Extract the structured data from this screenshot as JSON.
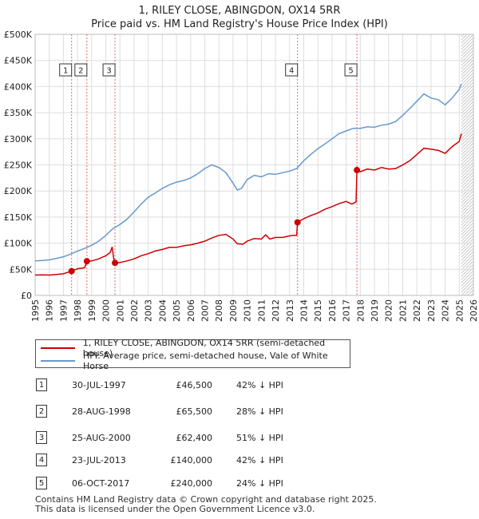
{
  "chart_data": {
    "type": "line",
    "title": "1, RILEY CLOSE, ABINGDON, OX14 5RR",
    "subtitle": "Price paid vs. HM Land Registry's House Price Index (HPI)",
    "xlim": [
      1995,
      2026
    ],
    "ylim": [
      0,
      500000
    ],
    "x_ticks": [
      1995,
      1996,
      1997,
      1998,
      1999,
      2000,
      2001,
      2002,
      2003,
      2004,
      2005,
      2006,
      2007,
      2008,
      2009,
      2010,
      2011,
      2012,
      2013,
      2014,
      2015,
      2016,
      2017,
      2018,
      2019,
      2020,
      2021,
      2022,
      2023,
      2024,
      2025,
      2026
    ],
    "y_ticks": [
      {
        "value": 0,
        "label": "£0"
      },
      {
        "value": 50000,
        "label": "£50K"
      },
      {
        "value": 100000,
        "label": "£100K"
      },
      {
        "value": 150000,
        "label": "£150K"
      },
      {
        "value": 200000,
        "label": "£200K"
      },
      {
        "value": 250000,
        "label": "£250K"
      },
      {
        "value": 300000,
        "label": "£300K"
      },
      {
        "value": 350000,
        "label": "£350K"
      },
      {
        "value": 400000,
        "label": "£400K"
      },
      {
        "value": 450000,
        "label": "£450K"
      },
      {
        "value": 500000,
        "label": "£500K"
      }
    ],
    "forecast_start": 2025.15,
    "series": [
      {
        "name": "1, RILEY CLOSE, ABINGDON, OX14 5RR (semi-detached house)",
        "color": "#cc0000",
        "points": [
          [
            1995.0,
            39000
          ],
          [
            1995.5,
            39500
          ],
          [
            1996.0,
            39000
          ],
          [
            1996.5,
            40000
          ],
          [
            1997.0,
            41500
          ],
          [
            1997.58,
            46500
          ],
          [
            1998.0,
            51000
          ],
          [
            1998.5,
            53000
          ],
          [
            1998.66,
            65500
          ],
          [
            1999.0,
            66000
          ],
          [
            1999.5,
            70000
          ],
          [
            2000.0,
            76000
          ],
          [
            2000.3,
            82000
          ],
          [
            2000.45,
            93000
          ],
          [
            2000.55,
            72000
          ],
          [
            2000.65,
            62400
          ],
          [
            2001.0,
            63000
          ],
          [
            2001.5,
            66000
          ],
          [
            2002.0,
            70000
          ],
          [
            2002.5,
            76000
          ],
          [
            2003.0,
            80000
          ],
          [
            2003.5,
            85000
          ],
          [
            2004.0,
            88000
          ],
          [
            2004.5,
            92000
          ],
          [
            2005.0,
            92000
          ],
          [
            2005.5,
            95000
          ],
          [
            2006.0,
            97000
          ],
          [
            2006.5,
            100000
          ],
          [
            2007.0,
            104000
          ],
          [
            2007.5,
            110000
          ],
          [
            2008.0,
            115000
          ],
          [
            2008.5,
            117000
          ],
          [
            2009.0,
            108000
          ],
          [
            2009.3,
            99000
          ],
          [
            2009.7,
            98000
          ],
          [
            2010.0,
            104000
          ],
          [
            2010.5,
            109000
          ],
          [
            2011.0,
            108000
          ],
          [
            2011.3,
            116000
          ],
          [
            2011.6,
            108000
          ],
          [
            2012.0,
            111000
          ],
          [
            2012.5,
            111000
          ],
          [
            2013.0,
            114000
          ],
          [
            2013.3,
            115000
          ],
          [
            2013.5,
            115000
          ],
          [
            2013.56,
            140000
          ],
          [
            2014.0,
            147000
          ],
          [
            2014.5,
            153000
          ],
          [
            2015.0,
            158000
          ],
          [
            2015.5,
            165000
          ],
          [
            2016.0,
            170000
          ],
          [
            2016.5,
            176000
          ],
          [
            2017.0,
            180000
          ],
          [
            2017.4,
            175000
          ],
          [
            2017.7,
            179000
          ],
          [
            2017.76,
            240000
          ],
          [
            2018.0,
            237000
          ],
          [
            2018.5,
            242000
          ],
          [
            2019.0,
            240000
          ],
          [
            2019.5,
            245000
          ],
          [
            2020.0,
            242000
          ],
          [
            2020.5,
            243000
          ],
          [
            2021.0,
            250000
          ],
          [
            2021.5,
            258000
          ],
          [
            2022.0,
            270000
          ],
          [
            2022.5,
            282000
          ],
          [
            2023.0,
            280000
          ],
          [
            2023.5,
            278000
          ],
          [
            2024.0,
            272000
          ],
          [
            2024.5,
            285000
          ],
          [
            2025.0,
            295000
          ],
          [
            2025.15,
            310000
          ]
        ]
      },
      {
        "name": "HPI: Average price, semi-detached house, Vale of White Horse",
        "color": "#6699cc",
        "points": [
          [
            1995.0,
            66000
          ],
          [
            1995.5,
            67000
          ],
          [
            1996.0,
            68000
          ],
          [
            1996.5,
            71000
          ],
          [
            1997.0,
            74000
          ],
          [
            1997.5,
            79000
          ],
          [
            1998.0,
            85000
          ],
          [
            1998.5,
            90000
          ],
          [
            1999.0,
            96000
          ],
          [
            1999.5,
            104000
          ],
          [
            2000.0,
            115000
          ],
          [
            2000.5,
            128000
          ],
          [
            2001.0,
            136000
          ],
          [
            2001.5,
            146000
          ],
          [
            2002.0,
            160000
          ],
          [
            2002.5,
            175000
          ],
          [
            2003.0,
            188000
          ],
          [
            2003.5,
            196000
          ],
          [
            2004.0,
            205000
          ],
          [
            2004.5,
            212000
          ],
          [
            2005.0,
            217000
          ],
          [
            2005.5,
            220000
          ],
          [
            2006.0,
            225000
          ],
          [
            2006.5,
            233000
          ],
          [
            2007.0,
            243000
          ],
          [
            2007.5,
            250000
          ],
          [
            2008.0,
            245000
          ],
          [
            2008.5,
            235000
          ],
          [
            2009.0,
            215000
          ],
          [
            2009.3,
            202000
          ],
          [
            2009.6,
            205000
          ],
          [
            2010.0,
            222000
          ],
          [
            2010.5,
            230000
          ],
          [
            2011.0,
            227000
          ],
          [
            2011.5,
            233000
          ],
          [
            2012.0,
            232000
          ],
          [
            2012.5,
            235000
          ],
          [
            2013.0,
            238000
          ],
          [
            2013.5,
            243000
          ],
          [
            2014.0,
            258000
          ],
          [
            2014.5,
            270000
          ],
          [
            2015.0,
            281000
          ],
          [
            2015.5,
            290000
          ],
          [
            2016.0,
            300000
          ],
          [
            2016.5,
            310000
          ],
          [
            2017.0,
            315000
          ],
          [
            2017.5,
            320000
          ],
          [
            2018.0,
            320000
          ],
          [
            2018.5,
            323000
          ],
          [
            2019.0,
            322000
          ],
          [
            2019.5,
            326000
          ],
          [
            2020.0,
            328000
          ],
          [
            2020.5,
            333000
          ],
          [
            2021.0,
            345000
          ],
          [
            2021.5,
            358000
          ],
          [
            2022.0,
            372000
          ],
          [
            2022.5,
            386000
          ],
          [
            2023.0,
            378000
          ],
          [
            2023.5,
            375000
          ],
          [
            2024.0,
            365000
          ],
          [
            2024.5,
            378000
          ],
          [
            2025.0,
            395000
          ],
          [
            2025.15,
            405000
          ]
        ]
      }
    ],
    "sales": [
      {
        "num": "1",
        "date": "30-JUL-1997",
        "price": "£46,500",
        "hpi": "42% ↓ HPI",
        "x": 1997.58,
        "y": 46500
      },
      {
        "num": "2",
        "date": "28-AUG-1998",
        "price": "£65,500",
        "hpi": "28% ↓ HPI",
        "x": 1998.66,
        "y": 65500
      },
      {
        "num": "3",
        "date": "25-AUG-2000",
        "price": "£62,400",
        "hpi": "51% ↓ HPI",
        "x": 2000.65,
        "y": 62400
      },
      {
        "num": "4",
        "date": "23-JUL-2013",
        "price": "£140,000",
        "hpi": "42% ↓ HPI",
        "x": 2013.56,
        "y": 140000
      },
      {
        "num": "5",
        "date": "06-OCT-2017",
        "price": "£240,000",
        "hpi": "24% ↓ HPI",
        "x": 2017.76,
        "y": 240000
      }
    ]
  },
  "legend": {
    "red": "1, RILEY CLOSE, ABINGDON, OX14 5RR (semi-detached house)",
    "blue": "HPI: Average price, semi-detached house, Vale of White Horse"
  },
  "footer": {
    "line1": "Contains HM Land Registry data © Crown copyright and database right 2025.",
    "line2": "This data is licensed under the Open Government Licence v3.0."
  }
}
